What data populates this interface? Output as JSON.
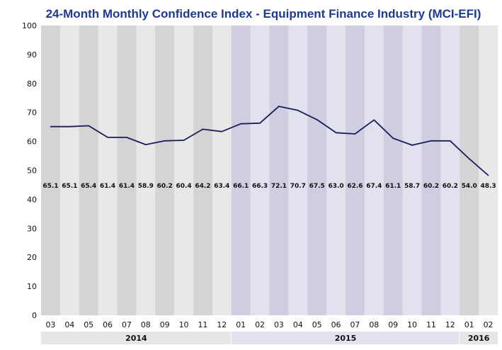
{
  "chart_data": {
    "type": "line",
    "title": "24-Month Monthly Confidence Index - Equipment Finance Industry (MCI-EFI)",
    "xlabel": "",
    "ylabel": "",
    "ylim": [
      0,
      100
    ],
    "yticks": [
      0,
      10,
      20,
      30,
      40,
      50,
      60,
      70,
      80,
      90,
      100
    ],
    "grid": false,
    "categories": [
      "03",
      "04",
      "05",
      "06",
      "07",
      "08",
      "09",
      "10",
      "11",
      "12",
      "01",
      "02",
      "03",
      "04",
      "05",
      "06",
      "07",
      "08",
      "09",
      "10",
      "11",
      "12",
      "01",
      "02"
    ],
    "years": [
      {
        "label": "2014",
        "months": 10
      },
      {
        "label": "2015",
        "months": 12
      },
      {
        "label": "2016",
        "months": 2
      }
    ],
    "values": [
      65.1,
      65.1,
      65.4,
      61.4,
      61.4,
      58.9,
      60.2,
      60.4,
      64.2,
      63.4,
      66.1,
      66.3,
      72.1,
      70.7,
      67.5,
      63.0,
      62.6,
      67.4,
      61.1,
      58.7,
      60.2,
      60.2,
      54.0,
      48.3
    ],
    "data_labels": [
      "65.1",
      "65.1",
      "65.4",
      "61.4",
      "61.4",
      "58.9",
      "60.2",
      "60.4",
      "64.2",
      "63.4",
      "66.1",
      "66.3",
      "72.1",
      "70.7",
      "67.5",
      "63.0",
      "62.6",
      "67.4",
      "61.1",
      "58.7",
      "60.2",
      "60.2",
      "54.0",
      "48.3"
    ],
    "colors": {
      "line": "#1c1c5c",
      "title": "#1d3a8f",
      "grey_dark": "#d4d4d4",
      "grey_light": "#e8e8e8",
      "purple_dark": "#cfcde0",
      "purple_light": "#e2e1ee",
      "year_grey": "#e6e6e6",
      "year_purple": "#e3e2ef"
    }
  }
}
